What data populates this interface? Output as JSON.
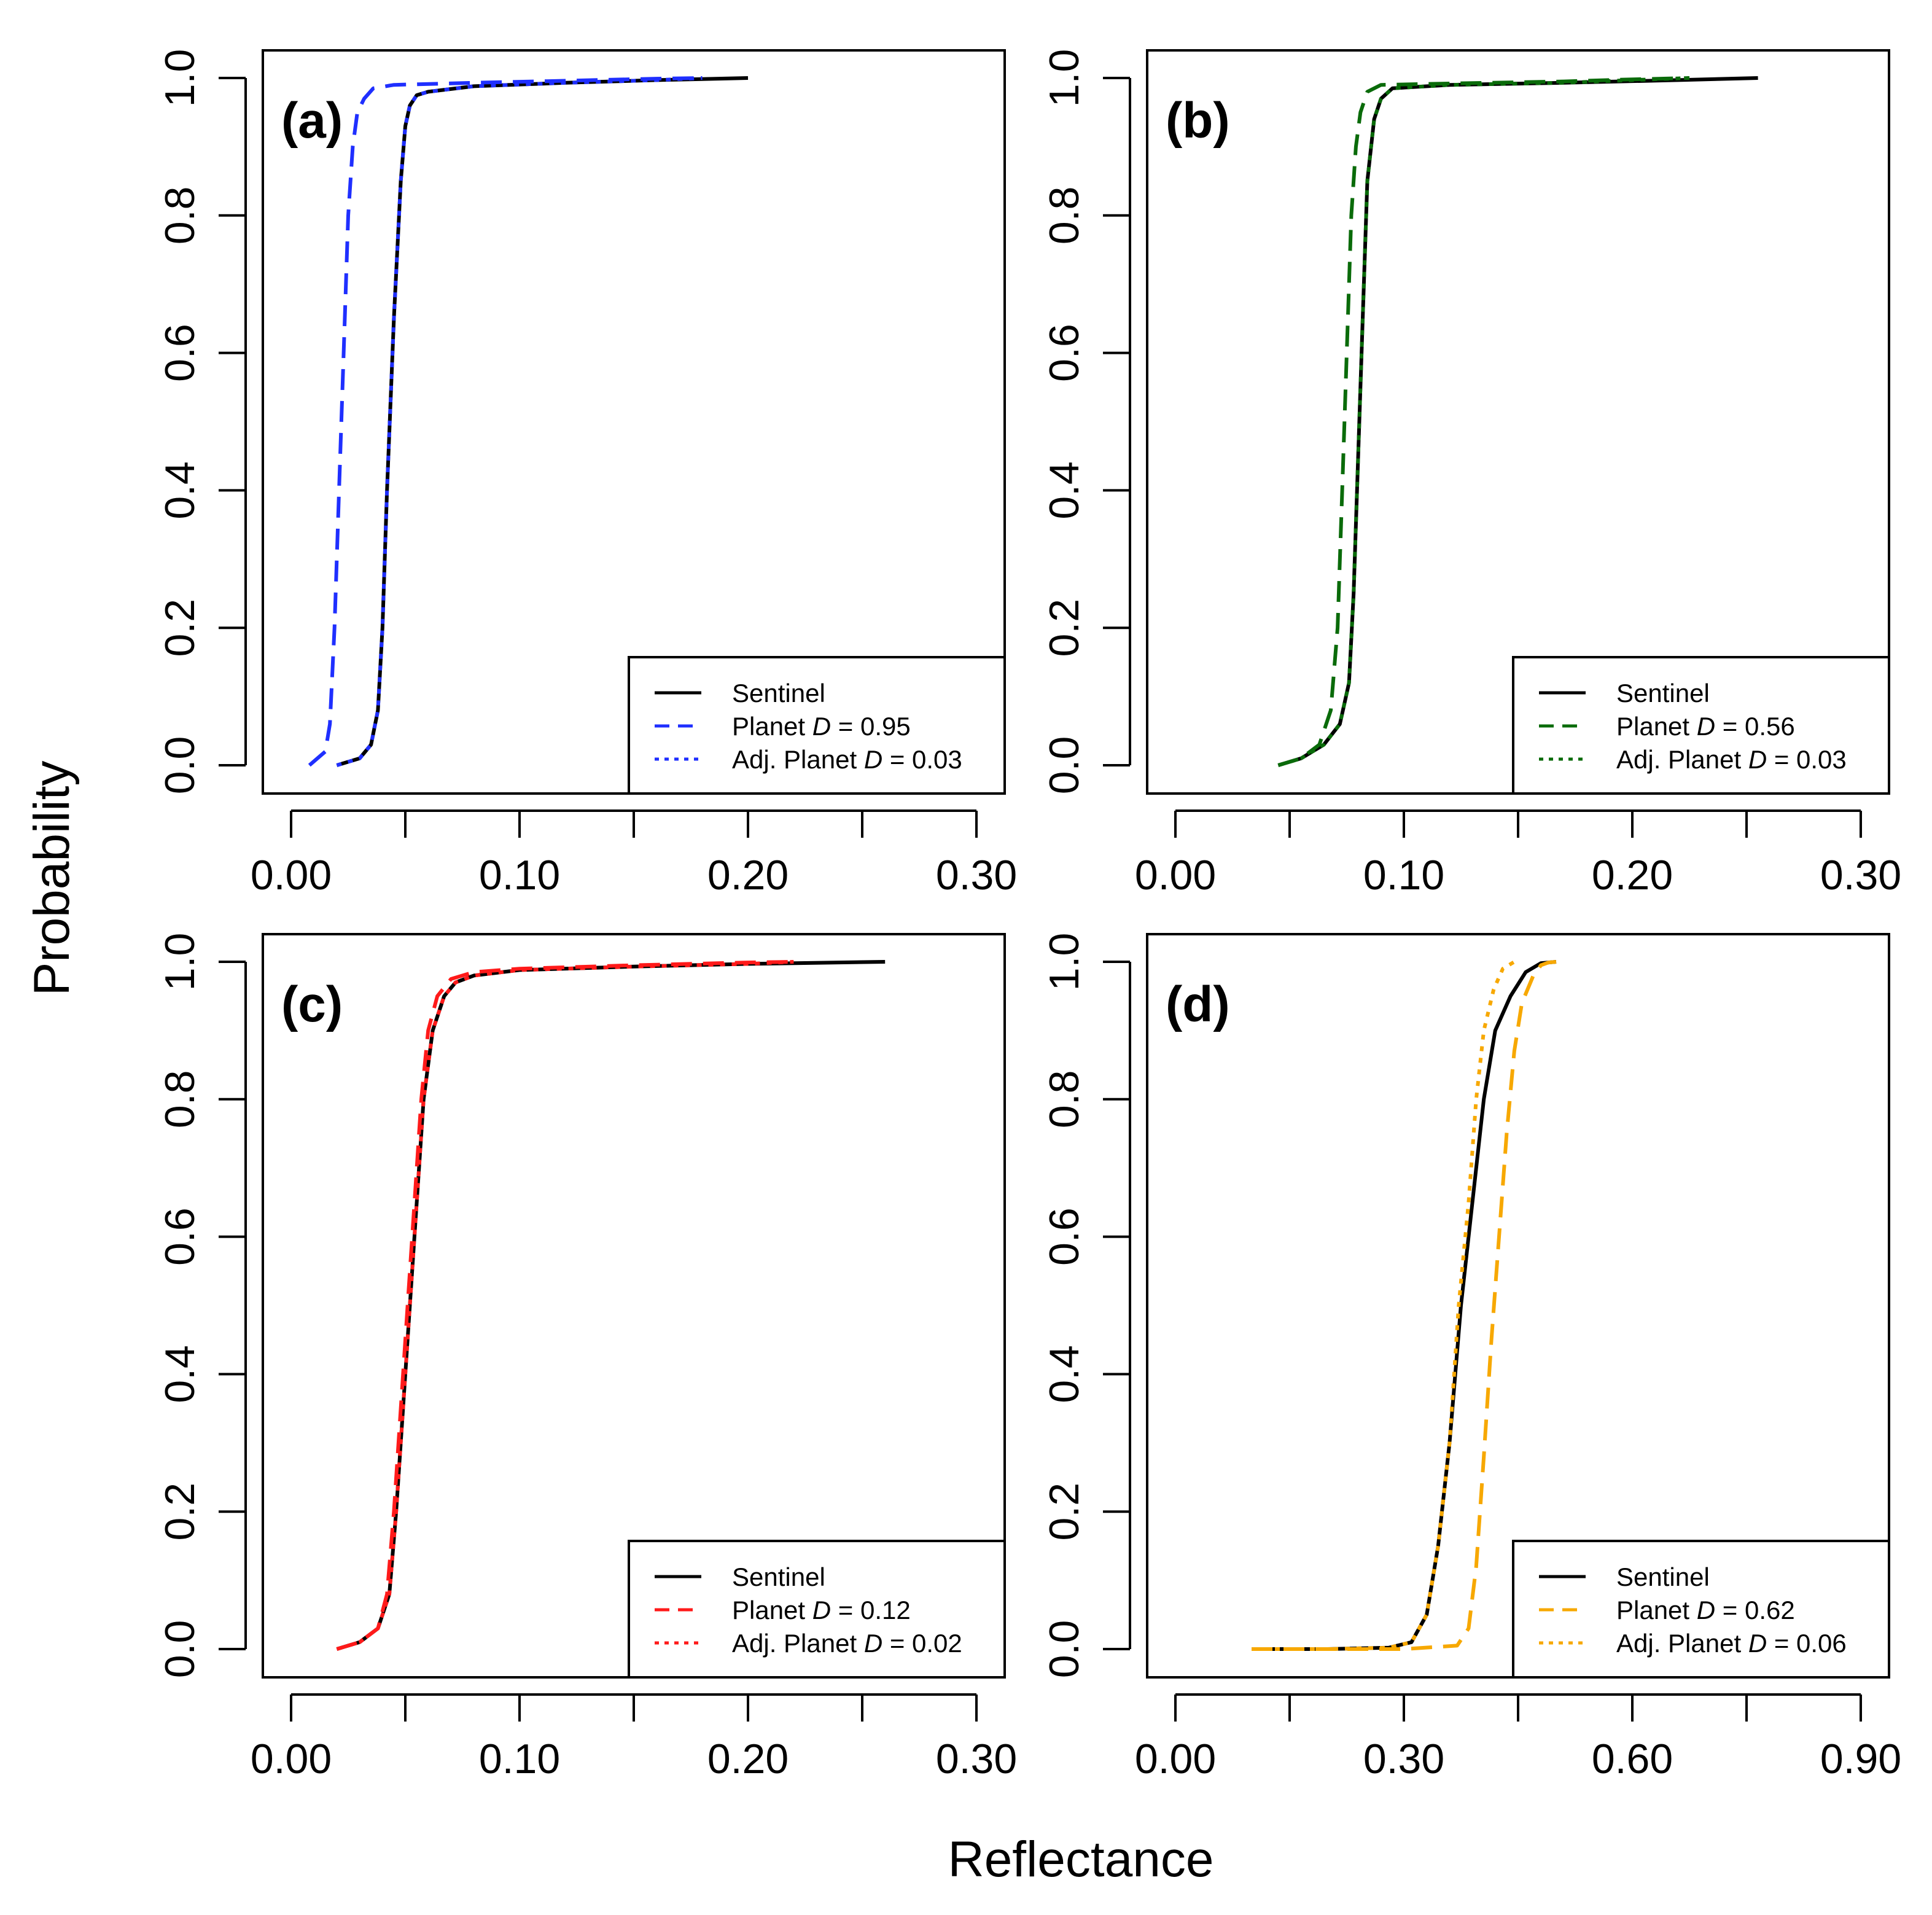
{
  "figure": {
    "ylabel": "Probability",
    "xlabel": "Reflectance"
  },
  "chart_data": [
    {
      "type": "line",
      "panel": "(a)",
      "xlim": [
        0.0,
        0.3
      ],
      "ylim": [
        0.0,
        1.0
      ],
      "xticks": [
        0.0,
        0.05,
        0.1,
        0.15,
        0.2,
        0.25,
        0.3
      ],
      "xtick_labels": [
        "0.00",
        "0.10",
        "0.20",
        "0.30"
      ],
      "yticks": [
        "0.0",
        "0.2",
        "0.4",
        "0.6",
        "0.8",
        "1.0"
      ],
      "series": [
        {
          "name": "Sentinel",
          "style": "solid",
          "color": "#000000",
          "x": [
            0.02,
            0.03,
            0.035,
            0.038,
            0.04,
            0.042,
            0.045,
            0.048,
            0.05,
            0.052,
            0.055,
            0.06,
            0.08,
            0.12,
            0.16,
            0.2
          ],
          "y": [
            0.0,
            0.01,
            0.03,
            0.08,
            0.2,
            0.4,
            0.65,
            0.85,
            0.93,
            0.96,
            0.975,
            0.98,
            0.988,
            0.993,
            0.997,
            1.0
          ]
        },
        {
          "name": "Planet",
          "style": "dashed",
          "color": "#1f2fff",
          "x": [
            0.008,
            0.015,
            0.017,
            0.019,
            0.021,
            0.023,
            0.025,
            0.027,
            0.029,
            0.032,
            0.036,
            0.045,
            0.08,
            0.12,
            0.16,
            0.18
          ],
          "y": [
            0.0,
            0.02,
            0.06,
            0.2,
            0.4,
            0.6,
            0.8,
            0.9,
            0.95,
            0.97,
            0.985,
            0.99,
            0.993,
            0.996,
            0.999,
            1.0
          ]
        },
        {
          "name": "Adj. Planet",
          "style": "dotted",
          "color": "#1f2fff",
          "x": [
            0.02,
            0.03,
            0.035,
            0.038,
            0.04,
            0.042,
            0.045,
            0.048,
            0.05,
            0.052,
            0.055,
            0.06,
            0.08,
            0.12,
            0.16,
            0.18
          ],
          "y": [
            0.0,
            0.01,
            0.03,
            0.08,
            0.2,
            0.4,
            0.65,
            0.85,
            0.93,
            0.96,
            0.975,
            0.98,
            0.988,
            0.993,
            0.997,
            1.0
          ]
        }
      ],
      "legend": {
        "position": "bottom-right",
        "entries": [
          {
            "label": "Sentinel",
            "d_label": "",
            "d_value": ""
          },
          {
            "label": "Planet ",
            "d_label": "D",
            "d_value": " = 0.95"
          },
          {
            "label": "Adj. Planet ",
            "d_label": "D",
            "d_value": " = 0.03"
          }
        ]
      }
    },
    {
      "type": "line",
      "panel": "(b)",
      "xlim": [
        0.0,
        0.3
      ],
      "ylim": [
        0.0,
        1.0
      ],
      "xticks": [
        0.0,
        0.05,
        0.1,
        0.15,
        0.2,
        0.25,
        0.3
      ],
      "xtick_labels": [
        "0.00",
        "0.10",
        "0.20",
        "0.30"
      ],
      "yticks": [
        "0.0",
        "0.2",
        "0.4",
        "0.6",
        "0.8",
        "1.0"
      ],
      "series": [
        {
          "name": "Sentinel",
          "style": "solid",
          "color": "#000000",
          "x": [
            0.045,
            0.055,
            0.065,
            0.072,
            0.076,
            0.078,
            0.08,
            0.082,
            0.084,
            0.087,
            0.09,
            0.095,
            0.12,
            0.17,
            0.22,
            0.255
          ],
          "y": [
            0.0,
            0.01,
            0.03,
            0.06,
            0.12,
            0.25,
            0.45,
            0.65,
            0.85,
            0.94,
            0.97,
            0.985,
            0.99,
            0.993,
            0.997,
            1.0
          ]
        },
        {
          "name": "Planet",
          "style": "dashed",
          "color": "#0a6b0a",
          "x": [
            0.045,
            0.055,
            0.063,
            0.068,
            0.071,
            0.073,
            0.075,
            0.077,
            0.079,
            0.081,
            0.084,
            0.09,
            0.12,
            0.17,
            0.2,
            0.225
          ],
          "y": [
            0.0,
            0.01,
            0.03,
            0.08,
            0.2,
            0.4,
            0.6,
            0.8,
            0.9,
            0.95,
            0.98,
            0.99,
            0.992,
            0.995,
            0.998,
            1.0
          ]
        },
        {
          "name": "Adj. Planet",
          "style": "dotted",
          "color": "#0a6b0a",
          "x": [
            0.045,
            0.055,
            0.065,
            0.072,
            0.076,
            0.078,
            0.08,
            0.082,
            0.084,
            0.087,
            0.09,
            0.095,
            0.12,
            0.17,
            0.2,
            0.225
          ],
          "y": [
            0.0,
            0.01,
            0.03,
            0.06,
            0.12,
            0.25,
            0.45,
            0.65,
            0.85,
            0.94,
            0.97,
            0.985,
            0.99,
            0.993,
            0.997,
            1.0
          ]
        }
      ],
      "legend": {
        "position": "bottom-right",
        "entries": [
          {
            "label": "Sentinel",
            "d_label": "",
            "d_value": ""
          },
          {
            "label": "Planet ",
            "d_label": "D",
            "d_value": " = 0.56"
          },
          {
            "label": "Adj. Planet ",
            "d_label": "D",
            "d_value": " = 0.03"
          }
        ]
      }
    },
    {
      "type": "line",
      "panel": "(c)",
      "xlim": [
        0.0,
        0.3
      ],
      "ylim": [
        0.0,
        1.0
      ],
      "xticks": [
        0.0,
        0.05,
        0.1,
        0.15,
        0.2,
        0.25,
        0.3
      ],
      "xtick_labels": [
        "0.00",
        "0.10",
        "0.20",
        "0.30"
      ],
      "yticks": [
        "0.0",
        "0.2",
        "0.4",
        "0.6",
        "0.8",
        "1.0"
      ],
      "series": [
        {
          "name": "Sentinel",
          "style": "solid",
          "color": "#000000",
          "x": [
            0.02,
            0.03,
            0.038,
            0.043,
            0.046,
            0.049,
            0.052,
            0.055,
            0.058,
            0.062,
            0.067,
            0.072,
            0.08,
            0.1,
            0.15,
            0.2,
            0.26
          ],
          "y": [
            0.0,
            0.01,
            0.03,
            0.08,
            0.2,
            0.35,
            0.5,
            0.65,
            0.8,
            0.9,
            0.95,
            0.97,
            0.98,
            0.988,
            0.993,
            0.997,
            1.0
          ]
        },
        {
          "name": "Planet",
          "style": "dashed",
          "color": "#ff1a1a",
          "x": [
            0.02,
            0.03,
            0.038,
            0.042,
            0.045,
            0.048,
            0.051,
            0.054,
            0.057,
            0.06,
            0.064,
            0.07,
            0.08,
            0.1,
            0.15,
            0.2,
            0.22
          ],
          "y": [
            0.0,
            0.01,
            0.03,
            0.08,
            0.2,
            0.35,
            0.5,
            0.65,
            0.8,
            0.9,
            0.95,
            0.975,
            0.985,
            0.99,
            0.995,
            0.999,
            1.0
          ]
        },
        {
          "name": "Adj. Planet",
          "style": "dotted",
          "color": "#ff1a1a",
          "x": [
            0.02,
            0.03,
            0.038,
            0.043,
            0.046,
            0.049,
            0.052,
            0.055,
            0.058,
            0.062,
            0.067,
            0.072,
            0.08,
            0.1,
            0.15,
            0.2,
            0.22
          ],
          "y": [
            0.0,
            0.01,
            0.03,
            0.08,
            0.2,
            0.35,
            0.5,
            0.65,
            0.8,
            0.9,
            0.95,
            0.97,
            0.98,
            0.988,
            0.993,
            0.997,
            1.0
          ]
        }
      ],
      "legend": {
        "position": "bottom-right",
        "entries": [
          {
            "label": "Sentinel",
            "d_label": "",
            "d_value": ""
          },
          {
            "label": "Planet ",
            "d_label": "D",
            "d_value": " = 0.12"
          },
          {
            "label": "Adj. Planet ",
            "d_label": "D",
            "d_value": " = 0.02"
          }
        ]
      }
    },
    {
      "type": "line",
      "panel": "(d)",
      "xlim": [
        0.0,
        0.9
      ],
      "ylim": [
        0.0,
        1.0
      ],
      "xticks": [
        0.0,
        0.15,
        0.3,
        0.45,
        0.6,
        0.75,
        0.9
      ],
      "xtick_labels": [
        "0.00",
        "0.30",
        "0.60",
        "0.90"
      ],
      "yticks": [
        "0.0",
        "0.2",
        "0.4",
        "0.6",
        "0.8",
        "1.0"
      ],
      "series": [
        {
          "name": "Sentinel",
          "style": "solid",
          "color": "#000000",
          "x": [
            0.1,
            0.2,
            0.28,
            0.31,
            0.33,
            0.345,
            0.36,
            0.375,
            0.39,
            0.405,
            0.42,
            0.44,
            0.46,
            0.48,
            0.5
          ],
          "y": [
            0.0,
            0.0,
            0.002,
            0.01,
            0.05,
            0.15,
            0.3,
            0.5,
            0.65,
            0.8,
            0.9,
            0.95,
            0.985,
            0.998,
            1.0
          ]
        },
        {
          "name": "Planet",
          "style": "dashed",
          "color": "#f7a800",
          "x": [
            0.1,
            0.3,
            0.37,
            0.385,
            0.395,
            0.405,
            0.415,
            0.425,
            0.435,
            0.445,
            0.455,
            0.47,
            0.48,
            0.49,
            0.5
          ],
          "y": [
            0.0,
            0.0,
            0.005,
            0.03,
            0.12,
            0.28,
            0.45,
            0.6,
            0.75,
            0.87,
            0.94,
            0.98,
            0.995,
            0.999,
            1.0
          ]
        },
        {
          "name": "Adj. Planet",
          "style": "dotted",
          "color": "#f7a800",
          "x": [
            0.1,
            0.2,
            0.28,
            0.31,
            0.33,
            0.345,
            0.36,
            0.372,
            0.385,
            0.395,
            0.405,
            0.418,
            0.43,
            0.445
          ],
          "y": [
            0.0,
            0.0,
            0.002,
            0.01,
            0.05,
            0.15,
            0.3,
            0.5,
            0.65,
            0.8,
            0.9,
            0.96,
            0.99,
            1.0
          ]
        }
      ],
      "legend": {
        "position": "bottom-right",
        "entries": [
          {
            "label": "Sentinel",
            "d_label": "",
            "d_value": ""
          },
          {
            "label": "Planet ",
            "d_label": "D",
            "d_value": " = 0.62"
          },
          {
            "label": "Adj. Planet ",
            "d_label": "D",
            "d_value": " = 0.06"
          }
        ]
      }
    }
  ]
}
